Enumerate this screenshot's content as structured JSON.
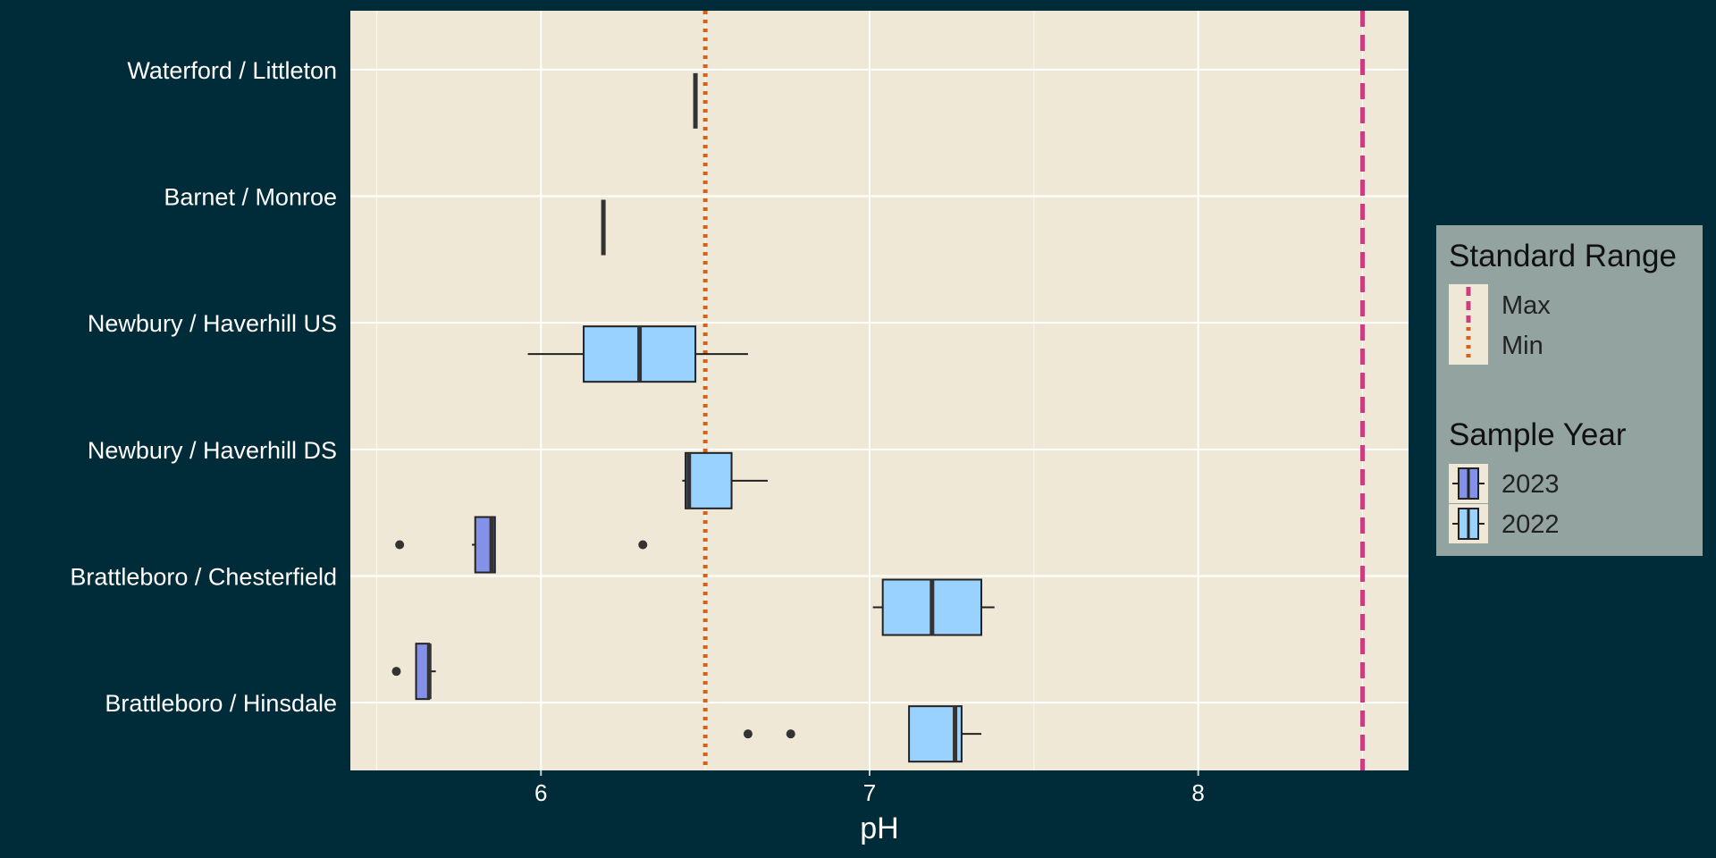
{
  "chart_data": {
    "type": "boxplot",
    "orientation": "horizontal",
    "xlabel": "pH",
    "xlim": [
      5.42,
      8.64
    ],
    "xticks": [
      6,
      7,
      8
    ],
    "categories": [
      "Waterford / Littleton",
      "Barnet / Monroe",
      "Newbury / Haverhill US",
      "Newbury / Haverhill DS",
      "Brattleboro / Chesterfield",
      "Brattleboro / Hinsdale"
    ],
    "series": [
      {
        "name": "2023",
        "color": "#8491e8",
        "boxes": [
          null,
          null,
          null,
          null,
          {
            "whisker_low": 5.79,
            "q1": 5.8,
            "median": 5.85,
            "q3": 5.86,
            "whisker_high": 5.86,
            "outliers": [
              5.57,
              6.31
            ]
          },
          {
            "whisker_low": 5.62,
            "q1": 5.62,
            "median": 5.66,
            "q3": 5.66,
            "whisker_high": 5.68,
            "outliers": [
              5.56
            ]
          }
        ]
      },
      {
        "name": "2022",
        "color": "#99d1ff",
        "boxes": [
          {
            "whisker_low": 6.47,
            "q1": 6.47,
            "median": 6.47,
            "q3": 6.47,
            "whisker_high": 6.47,
            "outliers": []
          },
          {
            "whisker_low": 6.19,
            "q1": 6.19,
            "median": 6.19,
            "q3": 6.19,
            "whisker_high": 6.19,
            "outliers": []
          },
          {
            "whisker_low": 5.96,
            "q1": 6.13,
            "median": 6.3,
            "q3": 6.47,
            "whisker_high": 6.63,
            "outliers": []
          },
          {
            "whisker_low": 6.43,
            "q1": 6.44,
            "median": 6.45,
            "q3": 6.58,
            "whisker_high": 6.69,
            "outliers": []
          },
          {
            "whisker_low": 7.01,
            "q1": 7.04,
            "median": 7.19,
            "q3": 7.34,
            "whisker_high": 7.38,
            "outliers": []
          },
          {
            "whisker_low": 7.12,
            "q1": 7.12,
            "median": 7.26,
            "q3": 7.28,
            "whisker_high": 7.34,
            "outliers": [
              6.63,
              6.76
            ]
          }
        ]
      }
    ],
    "reference_lines": [
      {
        "name": "Max",
        "value": 8.5,
        "color": "#cc3d80",
        "style": "dashed"
      },
      {
        "name": "Min",
        "value": 6.5,
        "color": "#d95f1a",
        "style": "dotted"
      }
    ],
    "legends": [
      {
        "title": "Standard Range",
        "entries": [
          "Max",
          "Min"
        ]
      },
      {
        "title": "Sample Year",
        "entries": [
          "2023",
          "2022"
        ]
      }
    ],
    "legend_placement": "right",
    "grid": true,
    "colors": {
      "background": "#002b38",
      "panel": "#f0e8d6",
      "grid": "#ffffff",
      "legend_background": "#93a3a0",
      "median": "#333333"
    }
  }
}
